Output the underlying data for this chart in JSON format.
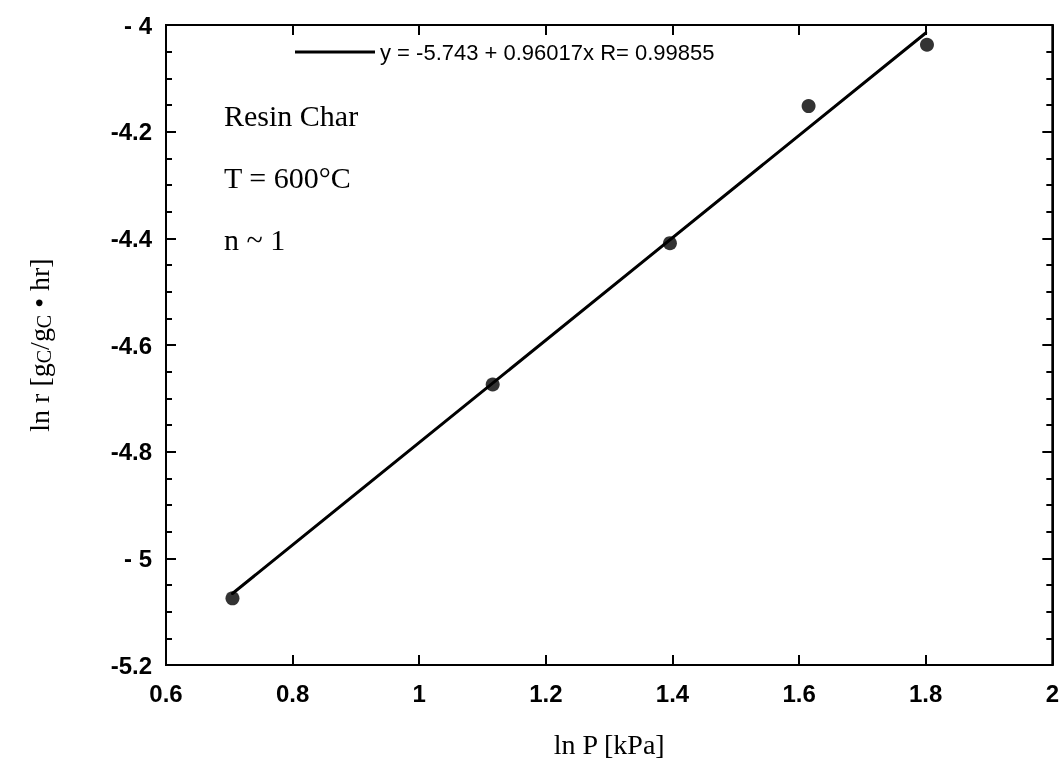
{
  "chart_data": {
    "type": "scatter",
    "xlabel": "ln P [kPa]",
    "ylabel": "ln r [g$_{C}$/g$_{C}$ • hr]",
    "annotations": [
      "Resin Char",
      "T = 600°C",
      "n ~ 1"
    ],
    "x": [
      0.705,
      1.116,
      1.396,
      1.615,
      1.802
    ],
    "series": [
      {
        "color": "#000000",
        "marker": "circle",
        "values": [
          -5.075,
          -4.674,
          -4.409,
          -4.152,
          -4.037
        ]
      },
      {
        "type": "line",
        "name": "y = -5.743 + 0.96017x R= 0.99855",
        "color": "#000000",
        "marker": "none",
        "line_style": "solid",
        "x": [
          0.705,
          1.8
        ],
        "values": [
          -5.066,
          -4.015
        ]
      }
    ],
    "xlim": [
      0.6,
      2
    ],
    "xticks": [
      0.6,
      0.8,
      1,
      1.2,
      1.4,
      1.6,
      1.8,
      2
    ],
    "ylim": [
      -5.2,
      -4
    ],
    "yticks": [
      -5.2,
      -5,
      -4.8,
      -4.6,
      -4.4,
      -4.2,
      -4
    ],
    "grid": false,
    "legend": "top"
  }
}
